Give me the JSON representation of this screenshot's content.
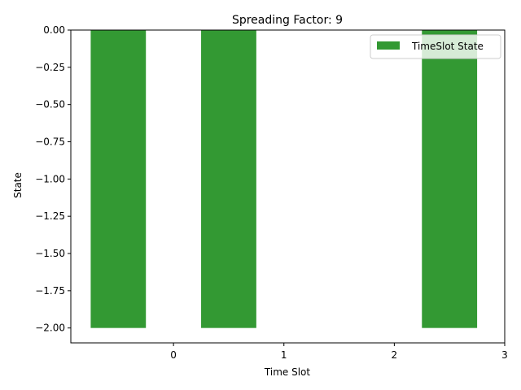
{
  "chart_data": {
    "type": "bar",
    "title": "Spreading Factor: 9",
    "xlabel": "Time Slot",
    "ylabel": "State",
    "bars": [
      {
        "x": -0.5,
        "value": -2.0
      },
      {
        "x": 0.5,
        "value": -2.0
      },
      {
        "x": 2.5,
        "value": -2.0
      }
    ],
    "bar_width": 0.5,
    "xlim": [
      -0.93,
      3.0
    ],
    "ylim": [
      -2.1,
      0.0
    ],
    "x_ticks": [
      0,
      1,
      2,
      3
    ],
    "x_tick_labels": [
      "0",
      "1",
      "2",
      "3"
    ],
    "y_ticks": [
      0.0,
      -0.25,
      -0.5,
      -0.75,
      -1.0,
      -1.25,
      -1.5,
      -1.75,
      -2.0
    ],
    "y_tick_labels": [
      "0.00",
      "−0.25",
      "−0.50",
      "−0.75",
      "−1.00",
      "−1.25",
      "−1.50",
      "−1.75",
      "−2.00"
    ],
    "legend": {
      "label": "TimeSlot State",
      "position": "top-right"
    },
    "grid": false,
    "bar_color": "#339933"
  }
}
